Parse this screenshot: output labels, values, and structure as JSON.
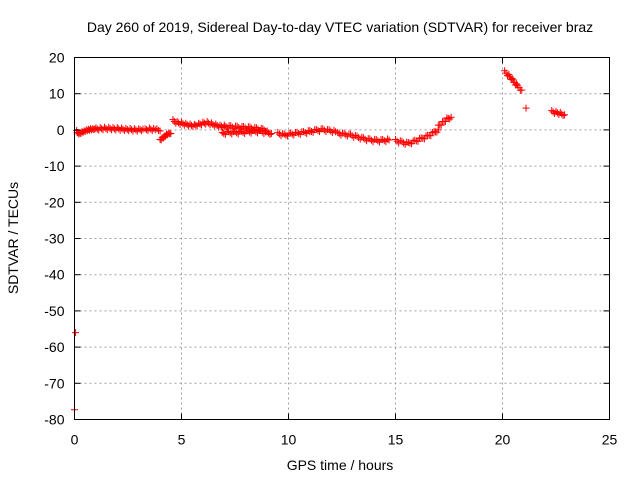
{
  "chart_data": {
    "type": "scatter",
    "title": "Day 260 of 2019, Sidereal Day-to-day VTEC variation (SDTVAR) for receiver braz",
    "xlabel": "GPS time / hours",
    "ylabel": "SDTVAR / TECUs",
    "xlim": [
      0,
      25
    ],
    "ylim": [
      -80,
      20
    ],
    "xticks": [
      0,
      5,
      10,
      15,
      20,
      25
    ],
    "yticks": [
      -80,
      -70,
      -60,
      -50,
      -40,
      -30,
      -20,
      -10,
      0,
      10,
      20
    ],
    "grid": true,
    "color": "#ff0000",
    "segments": [
      {
        "x": [
          0.0
        ],
        "y": [
          -77.3
        ]
      },
      {
        "x": [
          0.05
        ],
        "y": [
          -56.0
        ]
      },
      {
        "x": [
          0.1,
          0.15,
          0.25,
          0.35,
          0.45,
          0.55,
          0.65,
          0.75,
          0.85,
          0.95
        ],
        "y": [
          -0.5,
          -1.0,
          -1.2,
          -0.8,
          -0.6,
          -0.3,
          -0.2,
          0.0,
          0.0,
          0.2
        ]
      },
      {
        "x": [
          1.0,
          1.2,
          1.4,
          1.6,
          1.8,
          2.0,
          2.2,
          2.4,
          2.6,
          2.8,
          3.0,
          3.2
        ],
        "y": [
          0.2,
          0.3,
          0.4,
          0.4,
          0.3,
          0.3,
          0.2,
          0.1,
          0.1,
          0.0,
          0.0,
          0.2
        ]
      },
      {
        "x": [
          3.3,
          3.5,
          3.7,
          3.85,
          4.0
        ],
        "y": [
          0.0,
          0.2,
          0.1,
          0.0,
          -0.3
        ]
      },
      {
        "x": [
          4.0,
          4.1,
          4.2,
          4.3,
          4.4,
          4.5
        ],
        "y": [
          -3.0,
          -2.5,
          -2.0,
          -1.5,
          -1.2,
          -1.0
        ]
      },
      {
        "x": [
          4.6,
          4.8,
          5.0,
          5.2,
          5.4,
          5.6,
          5.8,
          6.0,
          6.2,
          6.4,
          6.6,
          6.8,
          7.0
        ],
        "y": [
          2.5,
          2.0,
          1.8,
          1.5,
          1.3,
          1.2,
          1.5,
          1.8,
          2.0,
          1.6,
          1.3,
          1.0,
          1.0
        ]
      },
      {
        "x": [
          6.9,
          7.2,
          7.5,
          7.8,
          8.1,
          8.4,
          8.7,
          9.0,
          9.2
        ],
        "y": [
          -1.0,
          -0.8,
          -0.8,
          -0.7,
          -0.6,
          -0.5,
          -0.5,
          -0.8,
          -1.0
        ]
      },
      {
        "x": [
          7.0,
          7.3,
          7.6,
          7.9,
          8.2,
          8.5,
          8.8,
          9.0
        ],
        "y": [
          1.0,
          0.8,
          0.7,
          0.6,
          0.5,
          0.3,
          0.0,
          -0.3
        ]
      },
      {
        "x": [
          9.5,
          9.8,
          10.1,
          10.4,
          10.7,
          11.0
        ],
        "y": [
          -1.0,
          -1.5,
          -1.2,
          -1.0,
          -0.8,
          -0.5
        ]
      },
      {
        "x": [
          11.0,
          11.3,
          11.6,
          11.9,
          12.2
        ],
        "y": [
          -0.5,
          -0.2,
          0.0,
          -0.3,
          -0.5
        ]
      },
      {
        "x": [
          12.3,
          12.6,
          12.9,
          13.2,
          13.5,
          13.8,
          14.1,
          14.4,
          14.7
        ],
        "y": [
          -1.0,
          -1.3,
          -1.5,
          -2.0,
          -2.5,
          -2.8,
          -3.0,
          -3.0,
          -2.8
        ]
      },
      {
        "x": [
          15.0,
          15.3,
          15.6,
          15.9,
          16.2,
          16.5,
          16.8,
          17.0
        ],
        "y": [
          -3.0,
          -3.5,
          -3.8,
          -3.2,
          -2.5,
          -1.8,
          -0.8,
          0.0
        ]
      },
      {
        "x": [
          17.0,
          17.2,
          17.4,
          17.6
        ],
        "y": [
          1.0,
          2.0,
          3.0,
          3.5
        ]
      },
      {
        "x": [
          20.1,
          20.3,
          20.5,
          20.7,
          20.9
        ],
        "y": [
          16.0,
          15.0,
          13.5,
          12.0,
          11.0
        ]
      },
      {
        "x": [
          21.1
        ],
        "y": [
          6.0
        ]
      },
      {
        "x": [
          22.3,
          22.5,
          22.7,
          22.9
        ],
        "y": [
          5.0,
          4.8,
          4.5,
          4.2
        ]
      }
    ]
  }
}
